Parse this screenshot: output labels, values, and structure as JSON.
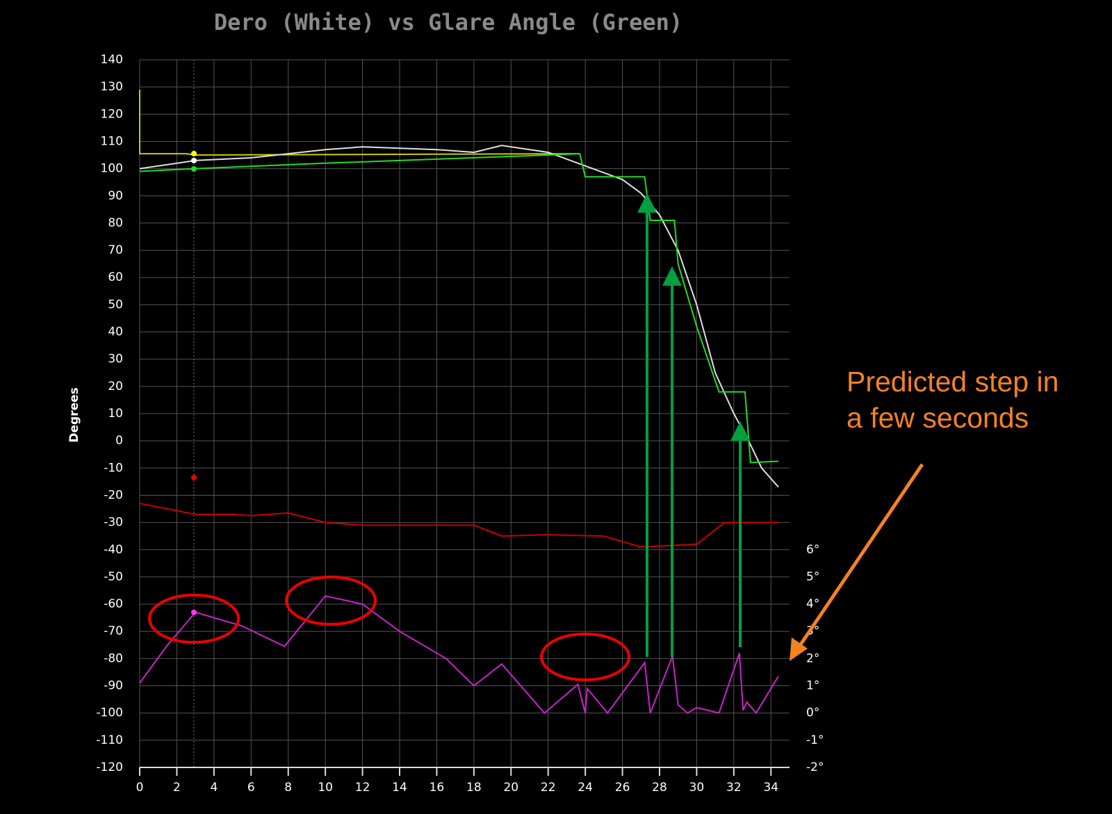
{
  "chart_data": {
    "type": "line",
    "title": "Dero (White) vs Glare Angle (Green)",
    "y_label": "Degrees",
    "xlim": [
      0,
      35
    ],
    "xticks": [
      0,
      2,
      4,
      6,
      8,
      10,
      12,
      14,
      16,
      18,
      20,
      22,
      24,
      26,
      28,
      30,
      32,
      34
    ],
    "ylim": [
      -120,
      140
    ],
    "yticks": [
      -120,
      -110,
      -100,
      -90,
      -80,
      -70,
      -60,
      -50,
      -40,
      -30,
      -20,
      -10,
      0,
      10,
      20,
      30,
      40,
      50,
      60,
      70,
      80,
      90,
      100,
      110,
      120,
      130,
      140
    ],
    "y2lim": [
      -2,
      24
    ],
    "y2ticks": [
      {
        "value": -2,
        "label": "-2°"
      },
      {
        "value": -1,
        "label": "-1°"
      },
      {
        "value": 0,
        "label": "0°"
      },
      {
        "value": 1,
        "label": "1°"
      },
      {
        "value": 2,
        "label": "2°"
      },
      {
        "value": 3,
        "label": "3°"
      },
      {
        "value": 4,
        "label": "4°"
      },
      {
        "value": 5,
        "label": "5°"
      },
      {
        "value": 6,
        "label": "6°"
      }
    ],
    "grid": true,
    "annotation": [
      "Predicted step in",
      "a few seconds"
    ],
    "series": [
      {
        "color": "#cccc00",
        "x": [
          0,
          0,
          2.5,
          3,
          23.7
        ],
        "values": [
          129,
          105.5,
          105.5,
          105,
          105.5
        ]
      },
      {
        "color": "#e0e0e0",
        "x": [
          0,
          3,
          6,
          10,
          12,
          16,
          18,
          19.5,
          22,
          24,
          26,
          27,
          28,
          29,
          30,
          31,
          32,
          32.8,
          33.5,
          34.4
        ],
        "values": [
          100,
          103,
          104,
          107,
          108,
          107,
          106,
          108.5,
          106,
          101,
          96,
          91,
          83,
          70,
          50,
          25,
          10,
          0,
          -10,
          -17
        ]
      },
      {
        "color": "#22dd22",
        "x": [
          0,
          3,
          10,
          22,
          23.7,
          24,
          27.2,
          27.5,
          28.8,
          29,
          30,
          31.2,
          32.6,
          32.9,
          34.4
        ],
        "values": [
          99,
          100,
          102,
          105,
          105.5,
          97,
          97,
          81,
          81,
          65,
          42,
          18,
          18,
          -8,
          -7.5
        ]
      },
      {
        "color": "#cc0000",
        "x": [
          0,
          3,
          5,
          6,
          8,
          10,
          12,
          18,
          19.5,
          22,
          25,
          27,
          30,
          31.5,
          34.4
        ],
        "values": [
          -23,
          -27,
          -27,
          -27.5,
          -26.5,
          -30,
          -31,
          -31,
          -35,
          -34.5,
          -35,
          -39,
          -38,
          -30,
          -30
        ]
      },
      {
        "color": "#cc22cc",
        "axis": "y2",
        "x": [
          0,
          1.5,
          3,
          5.5,
          7.8,
          10,
          12,
          14,
          16.5,
          18,
          19.5,
          21.8,
          23.6,
          24,
          24.1,
          25.2,
          27.2,
          27.5,
          28.7,
          29,
          29.5,
          30,
          31.2,
          32.3,
          32.5,
          32.7,
          33.2,
          34.4
        ],
        "values": [
          1.1,
          2.5,
          3.7,
          3.2,
          2.45,
          4.3,
          4.0,
          3.0,
          2.0,
          1.0,
          1.8,
          0,
          1.05,
          0,
          0.9,
          0,
          1.85,
          0,
          2.1,
          0.3,
          0,
          0.2,
          0,
          2.2,
          0.1,
          0.4,
          0,
          1.35
        ]
      }
    ]
  }
}
